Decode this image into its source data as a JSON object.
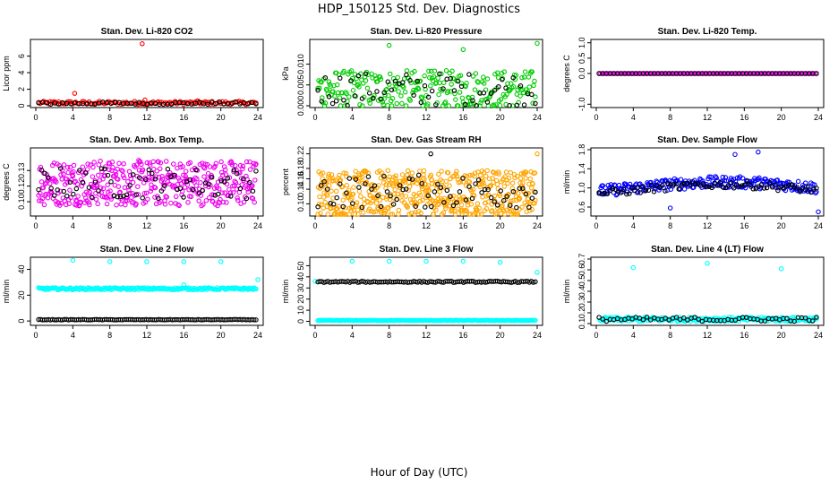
{
  "figure": {
    "title": "HDP_150125  Std. Dev. Diagnostics",
    "xlabel": "Hour of Day (UTC)"
  },
  "chart_data": [
    {
      "type": "scatter",
      "title": "Stan. Dev. Li-820 CO2",
      "ylabel": "Licor ppm",
      "xlim": [
        0,
        24
      ],
      "ylim": [
        0,
        7.8
      ],
      "xticks": [
        "0",
        "4",
        "8",
        "12",
        "16",
        "20",
        "24"
      ],
      "yticks": [
        "0",
        "2",
        "4",
        "6"
      ],
      "ytick_values": [
        0,
        2,
        4,
        6
      ],
      "series": [
        {
          "color": "#ff0000",
          "base": 0.35,
          "spread": 0.2,
          "count": 130,
          "outliers": [
            {
              "x": 4.2,
              "y": 1.5
            },
            {
              "x": 11.5,
              "y": 7.5
            },
            {
              "x": 11.8,
              "y": 0.7
            },
            {
              "x": 17.5,
              "y": 0.6
            }
          ]
        },
        {
          "color": "#000000",
          "base": 0.3,
          "spread": 0.15,
          "count": 55,
          "outliers": []
        }
      ]
    },
    {
      "type": "scatter",
      "title": "Stan. Dev. Li-820 Pressure",
      "ylabel": "kPa",
      "xlim": [
        0,
        24
      ],
      "ylim": [
        0,
        0.0155
      ],
      "xticks": [
        "0",
        "4",
        "8",
        "12",
        "16",
        "20",
        "24"
      ],
      "yticks": [
        "0.000",
        "0.005",
        "0.010"
      ],
      "ytick_values": [
        0,
        0.005,
        0.01
      ],
      "series": [
        {
          "color": "#00cc00",
          "base": 0.004,
          "spread": 0.0045,
          "count": 260,
          "outliers": [
            {
              "x": 8,
              "y": 0.0145
            },
            {
              "x": 16,
              "y": 0.0135
            },
            {
              "x": 24,
              "y": 0.015
            }
          ]
        },
        {
          "color": "#000000",
          "base": 0.004,
          "spread": 0.004,
          "count": 60,
          "outliers": []
        }
      ]
    },
    {
      "type": "scatter",
      "title": "Stan. Dev. Li-820 Temp.",
      "ylabel": "degrees C",
      "xlim": [
        0,
        24
      ],
      "ylim": [
        -1.05,
        1.05
      ],
      "xticks": [
        "0",
        "4",
        "8",
        "12",
        "16",
        "20",
        "24"
      ],
      "yticks": [
        "-1.0",
        "0.0",
        "0.5",
        "1.0"
      ],
      "ytick_values": [
        -1,
        0,
        0.5,
        1
      ],
      "series": [
        {
          "color": "#ee00ee",
          "base": 0,
          "spread": 0,
          "count": 140,
          "outliers": []
        },
        {
          "color": "#000000",
          "base": 0,
          "spread": 0,
          "count": 60,
          "outliers": []
        }
      ]
    },
    {
      "type": "scatter",
      "title": "Stan. Dev. Amb. Box Temp.",
      "ylabel": "degrees C",
      "xlim": [
        0,
        24
      ],
      "ylim": [
        0.088,
        0.15
      ],
      "xticks": [
        "0",
        "4",
        "8",
        "12",
        "16",
        "20",
        "24"
      ],
      "yticks": [
        "0.10",
        "0.12",
        "0.13"
      ],
      "ytick_values": [
        0.1,
        0.115,
        0.13
      ],
      "series": [
        {
          "color": "#ee00ee",
          "base": 0.118,
          "spread": 0.022,
          "count": 420,
          "outliers": []
        },
        {
          "color": "#000000",
          "base": 0.118,
          "spread": 0.015,
          "count": 70,
          "outliers": []
        }
      ]
    },
    {
      "type": "scatter",
      "title": "Stan. Dev. Gas Stream RH",
      "ylabel": "percent",
      "xlim": [
        0,
        24
      ],
      "ylim": [
        0.075,
        0.23
      ],
      "xticks": [
        "0",
        "4",
        "8",
        "12",
        "16",
        "20",
        "24"
      ],
      "yticks": [
        "0.10",
        "0.14",
        "0.16",
        "0.18",
        "0.22"
      ],
      "ytick_values": [
        0.1,
        0.135,
        0.16,
        0.185,
        0.22
      ],
      "series": [
        {
          "color": "#ffa500",
          "base": 0.125,
          "spread": 0.055,
          "count": 520,
          "outliers": [
            {
              "x": 24,
              "y": 0.22
            }
          ]
        },
        {
          "color": "#000000",
          "base": 0.13,
          "spread": 0.04,
          "count": 70,
          "outliers": [
            {
              "x": 12.5,
              "y": 0.22
            }
          ]
        }
      ]
    },
    {
      "type": "scatter",
      "title": "Stan. Dev. Sample Flow",
      "ylabel": "ml/min",
      "xlim": [
        0,
        24
      ],
      "ylim": [
        0.45,
        1.8
      ],
      "xticks": [
        "0",
        "4",
        "8",
        "12",
        "16",
        "20",
        "24"
      ],
      "yticks": [
        "0.6",
        "1.0",
        "1.4",
        "1.8"
      ],
      "ytick_values": [
        0.6,
        1.0,
        1.4,
        1.8
      ],
      "series": [
        {
          "color": "#0000ff",
          "base": 1.0,
          "spread": 0.12,
          "count": 240,
          "trend": true,
          "outliers": [
            {
              "x": 8,
              "y": 0.58
            },
            {
              "x": 15,
              "y": 1.7
            },
            {
              "x": 17.5,
              "y": 1.75
            },
            {
              "x": 24,
              "y": 0.5
            }
          ]
        },
        {
          "color": "#000000",
          "base": 0.95,
          "spread": 0.08,
          "count": 80,
          "trend": true,
          "outliers": []
        }
      ]
    },
    {
      "type": "scatter",
      "title": "Stan. Dev. Line 2 Flow",
      "ylabel": "ml/min",
      "xlim": [
        0,
        24
      ],
      "ylim": [
        -2,
        48
      ],
      "xticks": [
        "0",
        "4",
        "8",
        "12",
        "16",
        "20",
        "24"
      ],
      "yticks": [
        "0",
        "20",
        "40"
      ],
      "ytick_values": [
        0,
        20,
        40
      ],
      "series": [
        {
          "color": "#00ffff",
          "base": 25,
          "spread": 0.8,
          "count": 220,
          "outliers": [
            {
              "x": 4,
              "y": 47
            },
            {
              "x": 8,
              "y": 46
            },
            {
              "x": 12,
              "y": 46
            },
            {
              "x": 16,
              "y": 46
            },
            {
              "x": 20,
              "y": 46
            },
            {
              "x": 24,
              "y": 32
            },
            {
              "x": 16,
              "y": 28
            }
          ]
        },
        {
          "color": "#000000",
          "base": 1,
          "spread": 0.2,
          "count": 110,
          "outliers": []
        }
      ]
    },
    {
      "type": "scatter",
      "title": "Stan. Dev. Line 3 Flow",
      "ylabel": "ml/min",
      "xlim": [
        0,
        24
      ],
      "ylim": [
        -2,
        56
      ],
      "xticks": [
        "0",
        "4",
        "8",
        "12",
        "16",
        "20",
        "24"
      ],
      "yticks": [
        "0",
        "10",
        "20",
        "30",
        "40",
        "50"
      ],
      "ytick_values": [
        0,
        10,
        20,
        30,
        40,
        50
      ],
      "series": [
        {
          "color": "#00ffff",
          "base": 0.8,
          "spread": 0.2,
          "count": 200,
          "outliers": [
            {
              "x": 4,
              "y": 54
            },
            {
              "x": 8,
              "y": 54
            },
            {
              "x": 12,
              "y": 54
            },
            {
              "x": 16,
              "y": 54
            },
            {
              "x": 20,
              "y": 53
            },
            {
              "x": 24,
              "y": 44
            },
            {
              "x": 0,
              "y": 36
            }
          ]
        },
        {
          "color": "#000000",
          "base": 35.5,
          "spread": 0.6,
          "count": 110,
          "outliers": []
        }
      ]
    },
    {
      "type": "scatter",
      "title": "Stan. Dev. Line 4 (LT) Flow",
      "ylabel": "ml/min",
      "xlim": [
        0,
        24
      ],
      "ylim": [
        0.1,
        0.7
      ],
      "xticks": [
        "0",
        "4",
        "8",
        "12",
        "16",
        "20",
        "24"
      ],
      "yticks": [
        "0.1",
        "0.2",
        "0.3",
        "0.4",
        "0.5",
        "0.6",
        "0.7"
      ],
      "ytick_values": [
        0.1,
        0.2,
        0.3,
        0.4,
        0.5,
        0.6,
        0.7
      ],
      "series": [
        {
          "color": "#00ffff",
          "base": 0.14,
          "spread": 0.02,
          "count": 220,
          "outliers": [
            {
              "x": 4,
              "y": 0.62
            },
            {
              "x": 12,
              "y": 0.66
            },
            {
              "x": 20,
              "y": 0.61
            }
          ]
        },
        {
          "color": "#000000",
          "base": 0.14,
          "spread": 0.02,
          "count": 60,
          "outliers": []
        }
      ]
    }
  ]
}
